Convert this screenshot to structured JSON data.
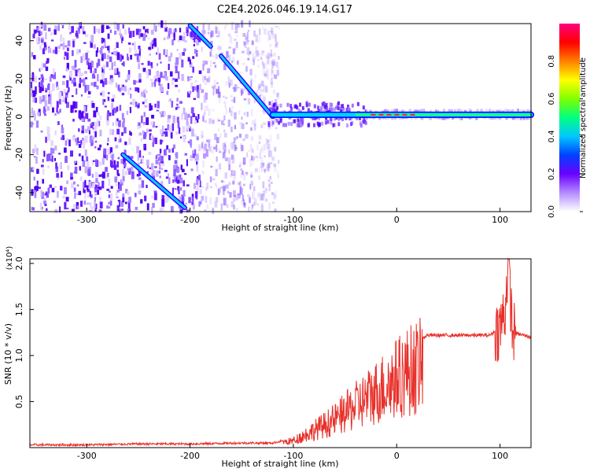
{
  "title": "C2E4.2026.046.19.14.G17",
  "chart_data": [
    {
      "type": "heatmap",
      "xlabel": "Height of straight line (km)",
      "ylabel": "Frequency (Hz)",
      "xlim": [
        -355,
        130
      ],
      "ylim": [
        -50,
        49
      ],
      "x_ticks": [
        -300,
        -200,
        -100,
        0,
        100
      ],
      "y_ticks": [
        40,
        20,
        0,
        -20,
        -40
      ],
      "colorbar": {
        "label": "Normalized spectral amplitude",
        "range": [
          0,
          1
        ],
        "ticks": [
          "0.0",
          "0.2",
          "0.4",
          "0.6",
          "0.8"
        ],
        "colors": [
          "#ffffff",
          "#b48cff",
          "#6a00ff",
          "#0040ff",
          "#00c8ff",
          "#00ff80",
          "#80ff00",
          "#ffff00",
          "#ff8000",
          "#ff0000",
          "#ff0080"
        ]
      },
      "ridges": [
        {
          "x": [
            -265,
            -205
          ],
          "y": [
            -20,
            -48
          ]
        },
        {
          "x": [
            -200,
            -180
          ],
          "y": [
            48,
            37
          ]
        },
        {
          "x": [
            -170,
            -120
          ],
          "y": [
            32,
            0
          ]
        },
        {
          "x": [
            -120,
            130
          ],
          "y": [
            1,
            1
          ]
        }
      ],
      "noise_region_x": [
        -355,
        -115
      ]
    },
    {
      "type": "line",
      "xlabel": "Height of straight line (km)",
      "ylabel": "SNR (10 * v/v)",
      "y_multiplier": "(x10⁴)",
      "xlim": [
        -355,
        130
      ],
      "ylim": [
        0,
        2.05
      ],
      "x_ticks": [
        -300,
        -200,
        -100,
        0,
        100
      ],
      "y_ticks": [
        "0.5",
        "1.0",
        "1.5",
        "2.0"
      ],
      "series": [
        {
          "color": "#e8302a",
          "x": [
            -355,
            -300,
            -250,
            -200,
            -150,
            -120,
            -100,
            -80,
            -60,
            -40,
            -20,
            -5,
            10,
            30,
            60,
            90,
            100,
            105,
            108,
            112,
            130
          ],
          "y": [
            0.03,
            0.03,
            0.04,
            0.04,
            0.05,
            0.05,
            0.1,
            0.25,
            0.4,
            0.6,
            0.8,
            0.95,
            1.1,
            1.22,
            1.22,
            1.22,
            1.3,
            1.5,
            2.05,
            1.25,
            1.2
          ]
        }
      ]
    }
  ]
}
